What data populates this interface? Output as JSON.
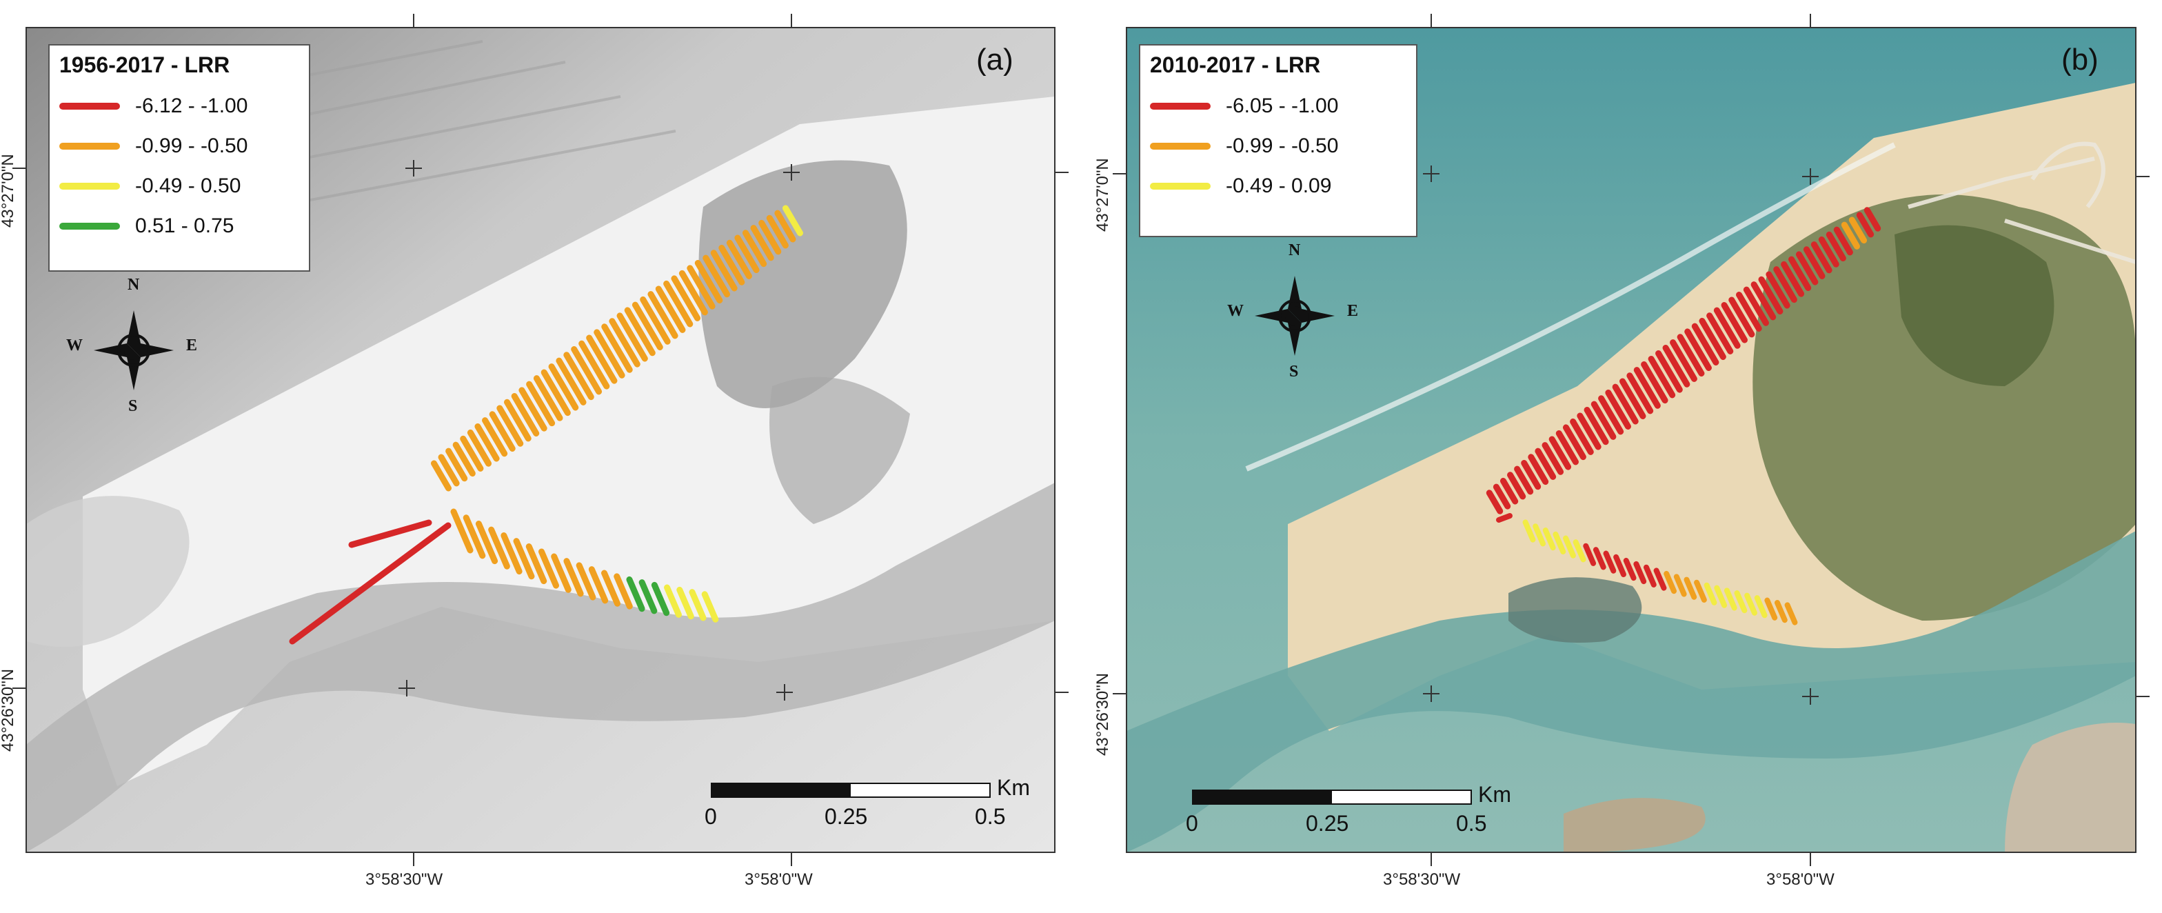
{
  "panels": [
    {
      "id": "a",
      "letter": "(a)",
      "style": "grayscale",
      "legend": {
        "title": "1956-2017  -  LRR",
        "classes": [
          {
            "label": "-6.12 - -1.00",
            "color": "#d62728"
          },
          {
            "label": "-0.99 - -0.50",
            "color": "#f0a020"
          },
          {
            "label": "-0.49 - 0.50",
            "color": "#f2ec44"
          },
          {
            "label": "0.51 - 0.75",
            "color": "#3aa83a"
          }
        ]
      },
      "compass": {
        "n": "N",
        "s": "S",
        "e": "E",
        "w": "W"
      },
      "axes": {
        "x_ticks": [
          "3°58'30\"W",
          "3°58'0\"W"
        ],
        "y_ticks": [
          "43°27'0\"N",
          "43°26'30\"N"
        ]
      },
      "scale_bar": {
        "labels": [
          "0",
          "0.25",
          "0.5"
        ],
        "unit": "Km"
      }
    },
    {
      "id": "b",
      "letter": "(b)",
      "style": "color",
      "legend": {
        "title": "2010-2017  -  LRR",
        "classes": [
          {
            "label": "-6.05 - -1.00",
            "color": "#d62728"
          },
          {
            "label": "-0.99 - -0.50",
            "color": "#f0a020"
          },
          {
            "label": "-0.49 - 0.09",
            "color": "#f2ec44"
          }
        ]
      },
      "compass": {
        "n": "N",
        "s": "S",
        "e": "E",
        "w": "W"
      },
      "axes": {
        "x_ticks": [
          "3°58'30\"W",
          "3°58'0\"W"
        ],
        "y_ticks": [
          "43°27'0\"N",
          "43°26'30\"N"
        ]
      },
      "scale_bar": {
        "labels": [
          "0",
          "0.25",
          "0.5"
        ],
        "unit": "Km"
      }
    }
  ]
}
